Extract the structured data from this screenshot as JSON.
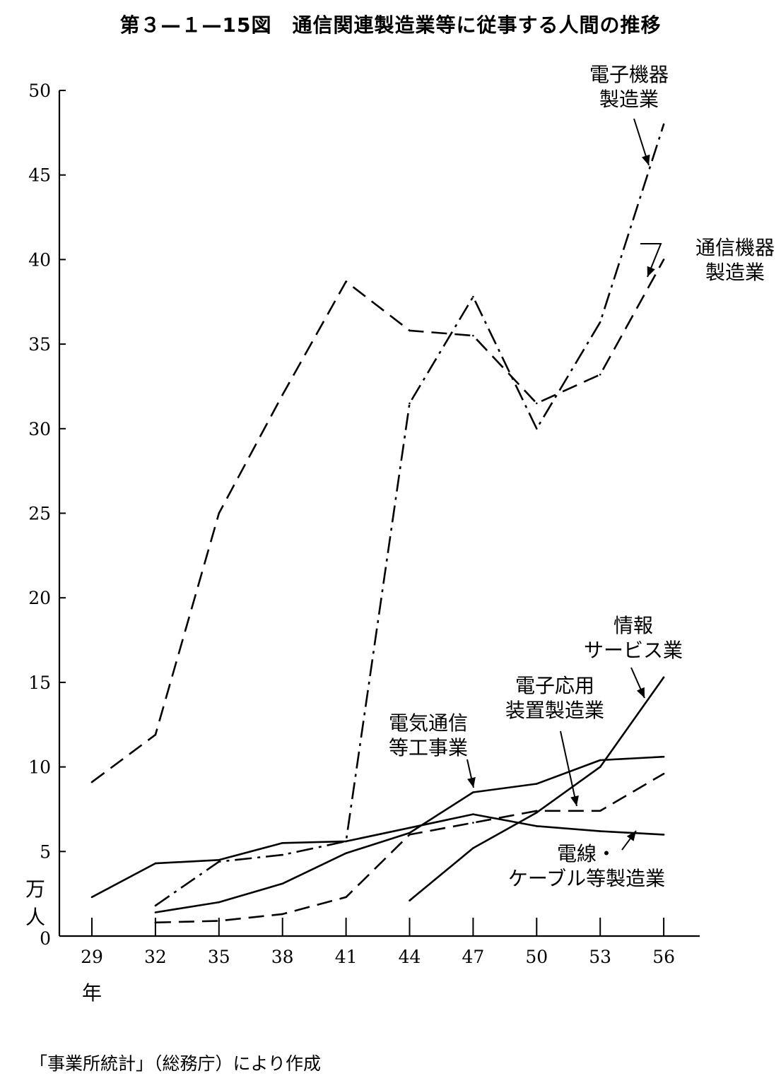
{
  "title": "第３—１—15図　通信関連製造業等に従事する人間の推移",
  "source": "「事業所統計」（総務庁）により作成",
  "chart_data": {
    "type": "line",
    "title": "第３—１—15図　通信関連製造業等に従事する人間の推移",
    "xlabel": "年",
    "ylabel": "万人",
    "ylim": [
      0,
      50
    ],
    "yticks": [
      "0",
      "5",
      "10",
      "15",
      "20",
      "25",
      "30",
      "35",
      "40",
      "45",
      "50"
    ],
    "categories": [
      "29",
      "32",
      "35",
      "38",
      "41",
      "44",
      "47",
      "50",
      "53",
      "56"
    ],
    "grid": false,
    "series": [
      {
        "name": "通信機器製造業",
        "label_lines": [
          "通信機器",
          "製造業"
        ],
        "style": "dashed",
        "points": [
          [
            29,
            9.1
          ],
          [
            32,
            11.9
          ],
          [
            35,
            25.0
          ],
          [
            38,
            32.0
          ],
          [
            41,
            38.7
          ],
          [
            44,
            35.8
          ],
          [
            47,
            35.5
          ],
          [
            50,
            31.5
          ],
          [
            53,
            33.2
          ],
          [
            56,
            40.0
          ]
        ]
      },
      {
        "name": "電子機器製造業",
        "label_lines": [
          "電子機器",
          "製造業"
        ],
        "style": "dashdot",
        "points": [
          [
            32,
            1.8
          ],
          [
            35,
            4.4
          ],
          [
            38,
            4.8
          ],
          [
            41,
            5.6
          ],
          [
            44,
            31.5
          ],
          [
            47,
            37.8
          ],
          [
            50,
            30.0
          ],
          [
            53,
            36.3
          ],
          [
            56,
            48.0
          ]
        ]
      },
      {
        "name": "電気通信等工事業",
        "label_lines": [
          "電気通信",
          "等工事業"
        ],
        "style": "solid",
        "points": [
          [
            32,
            1.4
          ],
          [
            35,
            2.0
          ],
          [
            38,
            3.1
          ],
          [
            41,
            4.9
          ],
          [
            44,
            6.1
          ],
          [
            47,
            8.5
          ],
          [
            50,
            9.0
          ],
          [
            53,
            10.4
          ],
          [
            56,
            10.6
          ]
        ]
      },
      {
        "name": "電線・ケーブル等製造業",
        "label_lines": [
          "電線・",
          "ケーブル等製造業"
        ],
        "style": "solid",
        "points": [
          [
            29,
            2.3
          ],
          [
            32,
            4.3
          ],
          [
            35,
            4.5
          ],
          [
            38,
            5.5
          ],
          [
            41,
            5.6
          ],
          [
            44,
            6.4
          ],
          [
            47,
            7.2
          ],
          [
            50,
            6.5
          ],
          [
            53,
            6.2
          ],
          [
            56,
            6.0
          ]
        ]
      },
      {
        "name": "電子応用装置製造業",
        "label_lines": [
          "電子応用",
          "装置製造業"
        ],
        "style": "dashed",
        "points": [
          [
            32,
            0.8
          ],
          [
            35,
            0.9
          ],
          [
            38,
            1.3
          ],
          [
            41,
            2.3
          ],
          [
            44,
            6.0
          ],
          [
            47,
            6.7
          ],
          [
            50,
            7.4
          ],
          [
            53,
            7.4
          ],
          [
            56,
            9.6
          ]
        ]
      },
      {
        "name": "情報サービス業",
        "label_lines": [
          "情報",
          "サービス業"
        ],
        "style": "solid",
        "points": [
          [
            44,
            2.1
          ],
          [
            47,
            5.2
          ],
          [
            50,
            7.3
          ],
          [
            53,
            10.0
          ],
          [
            56,
            15.3
          ]
        ]
      }
    ]
  }
}
